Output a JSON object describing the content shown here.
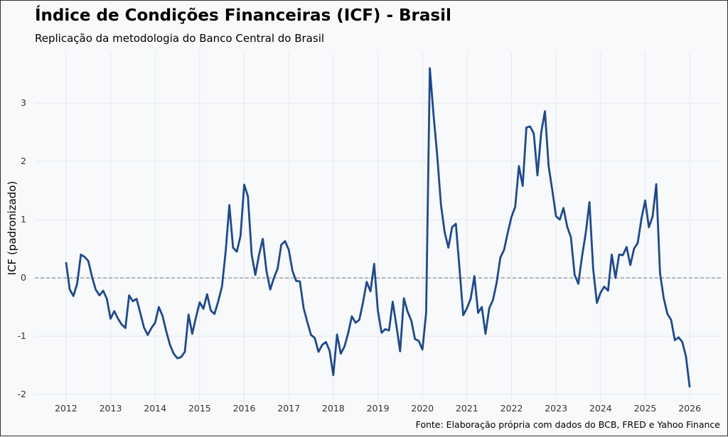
{
  "chart_data": {
    "type": "line",
    "title": "Índice de Condições Financeiras (ICF) - Brasil",
    "subtitle": "Replicação da metodologia do Banco Central do Brasil",
    "xlabel": "",
    "ylabel": "ICF (padronizado)",
    "source": "Fonte: Elaboração própria com dados do BCB, FRED e Yahoo Finance",
    "x_start": "2012-01",
    "x_frequency": "monthly",
    "xlim": [
      2011.3,
      2026.7
    ],
    "ylim": [
      -2.17,
      3.88
    ],
    "x_ticks": [
      "2012",
      "2013",
      "2014",
      "2015",
      "2016",
      "2017",
      "2018",
      "2019",
      "2020",
      "2021",
      "2022",
      "2023",
      "2024",
      "2025",
      "2026"
    ],
    "y_ticks": [
      "-2",
      "-1",
      "0",
      "1",
      "2",
      "3"
    ],
    "grid": true,
    "reference_line": 0,
    "line_color": "#1f4a8a",
    "values": [
      0.27,
      -0.2,
      -0.31,
      -0.1,
      0.4,
      0.36,
      0.29,
      0.02,
      -0.2,
      -0.3,
      -0.22,
      -0.36,
      -0.7,
      -0.57,
      -0.7,
      -0.8,
      -0.86,
      -0.3,
      -0.4,
      -0.36,
      -0.6,
      -0.85,
      -0.98,
      -0.86,
      -0.77,
      -0.5,
      -0.65,
      -0.92,
      -1.15,
      -1.3,
      -1.38,
      -1.36,
      -1.27,
      -0.63,
      -0.96,
      -0.68,
      -0.42,
      -0.53,
      -0.28,
      -0.56,
      -0.62,
      -0.4,
      -0.15,
      0.45,
      1.25,
      0.52,
      0.45,
      0.72,
      1.6,
      1.4,
      0.4,
      0.05,
      0.4,
      0.67,
      0.12,
      -0.2,
      0.0,
      0.16,
      0.57,
      0.63,
      0.48,
      0.12,
      -0.05,
      -0.06,
      -0.52,
      -0.76,
      -0.98,
      -1.03,
      -1.27,
      -1.15,
      -1.1,
      -1.25,
      -1.67,
      -0.97,
      -1.3,
      -1.18,
      -0.95,
      -0.66,
      -0.77,
      -0.72,
      -0.42,
      -0.07,
      -0.23,
      0.24,
      -0.56,
      -0.94,
      -0.88,
      -0.9,
      -0.41,
      -0.82,
      -1.26,
      -0.35,
      -0.58,
      -0.73,
      -1.05,
      -1.08,
      -1.23,
      -0.6,
      3.6,
      2.8,
      2.1,
      1.25,
      0.78,
      0.52,
      0.87,
      0.93,
      0.15,
      -0.64,
      -0.52,
      -0.36,
      0.03,
      -0.6,
      -0.5,
      -0.96,
      -0.52,
      -0.38,
      -0.08,
      0.35,
      0.48,
      0.78,
      1.05,
      1.22,
      1.92,
      1.58,
      2.58,
      2.6,
      2.48,
      1.76,
      2.5,
      2.86,
      1.92,
      1.5,
      1.06,
      1.0,
      1.2,
      0.88,
      0.7,
      0.05,
      -0.1,
      0.37,
      0.77,
      1.3,
      0.15,
      -0.43,
      -0.25,
      -0.15,
      -0.22,
      0.4,
      0.0,
      0.4,
      0.39,
      0.53,
      0.22,
      0.5,
      0.6,
      1.02,
      1.33,
      0.87,
      1.05,
      1.61,
      0.08,
      -0.35,
      -0.62,
      -0.72,
      -1.07,
      -1.02,
      -1.1,
      -1.35,
      -1.88
    ]
  }
}
